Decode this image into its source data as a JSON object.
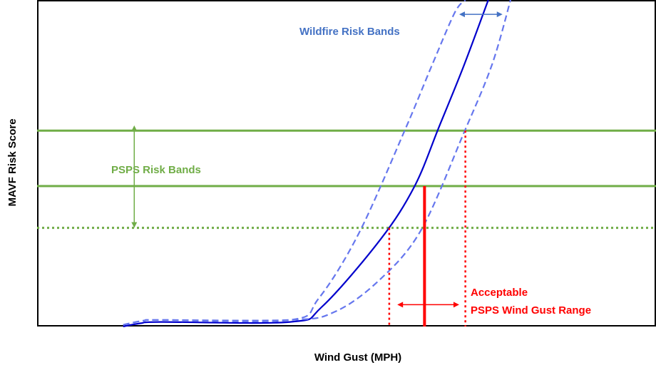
{
  "chart_data": {
    "type": "line",
    "xlabel": "Wind Gust (MPH)",
    "ylabel": "MAVF Risk Score",
    "xlim": [
      0,
      100
    ],
    "ylim": [
      0,
      100
    ],
    "grid": false,
    "ticks": "none",
    "series": [
      {
        "role": "central",
        "x": [
          13.9,
          16.8,
          20.0,
          40.9,
          46.0,
          55.5,
          61.0,
          65.0,
          69.0,
          72.9
        ],
        "y": [
          0.0,
          1.0,
          1.4,
          1.4,
          6.0,
          26.7,
          43.0,
          61.4,
          80.1,
          100.0
        ],
        "color": "#0000cc",
        "style": "solid"
      },
      {
        "role": "upper",
        "x": [
          13.9,
          17.2,
          20.0,
          40.9,
          45.5,
          52.0,
          59.5,
          64.0,
          67.5,
          69.2
        ],
        "y": [
          0.5,
          1.8,
          2.0,
          2.0,
          8.6,
          28.6,
          60.5,
          80.9,
          96.2,
          100.0
        ],
        "color": "#6677ee",
        "style": "dashed"
      },
      {
        "role": "lower",
        "x": [
          13.9,
          17.2,
          20.0,
          40.9,
          48.0,
          55.0,
          62.0,
          69.0,
          73.5,
          76.5
        ],
        "y": [
          0.5,
          1.8,
          2.0,
          2.0,
          4.4,
          13.7,
          29.4,
          59.5,
          80.2,
          100.0
        ],
        "color": "#6677ee",
        "style": "dashed"
      }
    ],
    "hlines": [
      {
        "y": 60.0,
        "color": "#70ad47",
        "style": "solid"
      },
      {
        "y": 43.0,
        "color": "#70ad47",
        "style": "solid"
      },
      {
        "y": 30.2,
        "color": "#70ad47",
        "style": "dotted"
      }
    ],
    "vlines": [
      {
        "x": 56.9,
        "y": 30.2,
        "color": "#ff0000",
        "style": "dotted"
      },
      {
        "x": 62.6,
        "y": 43.0,
        "color": "#ff0000",
        "style": "solid"
      },
      {
        "x": 69.2,
        "y": 60.0,
        "color": "#ff0000",
        "style": "dotted"
      }
    ],
    "annotations": [
      {
        "text": "Wildfire Risk Bands",
        "color": "#4472c4",
        "arrow": {
          "x1": 68.2,
          "x2": 75.2,
          "y": 95.6
        }
      },
      {
        "text": "PSPS Risk Bands",
        "color": "#70ad47",
        "arrow": {
          "x": 15.7,
          "y1": 61.6,
          "y2": 30.2
        }
      },
      {
        "text": "Acceptable",
        "color": "#ff0000",
        "arrow": {
          "x1": 58.2,
          "x2": 68.2,
          "y": 6.7
        }
      },
      {
        "text": "PSPS Wind Gust Range",
        "color": "#ff0000"
      }
    ]
  }
}
